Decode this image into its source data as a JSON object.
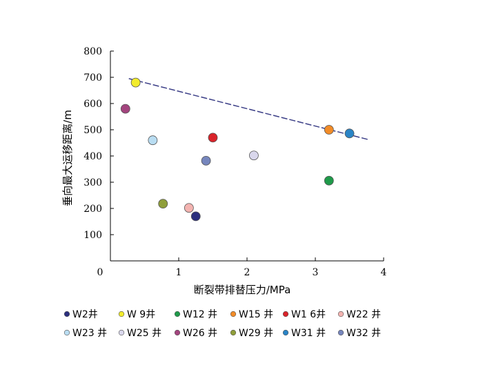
{
  "chart_data": {
    "type": "scatter",
    "xlabel": "断裂带排替压力/MPa",
    "ylabel": "垂向最大运移距离/m",
    "xlim": [
      0,
      4
    ],
    "ylim": [
      0,
      800
    ],
    "x_ticks": [
      0,
      1,
      2,
      3,
      4
    ],
    "y_ticks": [
      100,
      200,
      300,
      400,
      500,
      600,
      700,
      800
    ],
    "grid": false,
    "legend_position": "bottom",
    "series": [
      {
        "name": "W2井",
        "x": 1.25,
        "y": 170,
        "color": "#2b2f7e"
      },
      {
        "name": "W 9井",
        "x": 0.37,
        "y": 680,
        "color": "#f2ec2c"
      },
      {
        "name": "W12 井",
        "x": 3.2,
        "y": 306,
        "color": "#1f9a4a"
      },
      {
        "name": "W15 井",
        "x": 3.2,
        "y": 500,
        "color": "#f28c28"
      },
      {
        "name": "W1 6井",
        "x": 1.5,
        "y": 470,
        "color": "#d9232a"
      },
      {
        "name": "W22 井",
        "x": 1.15,
        "y": 202,
        "color": "#f3b3b0"
      },
      {
        "name": "W23 井",
        "x": 0.62,
        "y": 460,
        "color": "#b9ddf2"
      },
      {
        "name": "W25 井",
        "x": 2.1,
        "y": 402,
        "color": "#d9d7ec"
      },
      {
        "name": "W26 井",
        "x": 0.22,
        "y": 580,
        "color": "#a3447e"
      },
      {
        "name": "W29 井",
        "x": 0.77,
        "y": 218,
        "color": "#8f9e3a"
      },
      {
        "name": "W31 井",
        "x": 3.5,
        "y": 486,
        "color": "#2a84c6"
      },
      {
        "name": "W32 井",
        "x": 1.4,
        "y": 382,
        "color": "#7686bd"
      }
    ],
    "trend_line": {
      "x": [
        0.27,
        3.77
      ],
      "y": [
        695,
        463
      ],
      "color": "#3a3d86",
      "style": "dashed"
    }
  }
}
